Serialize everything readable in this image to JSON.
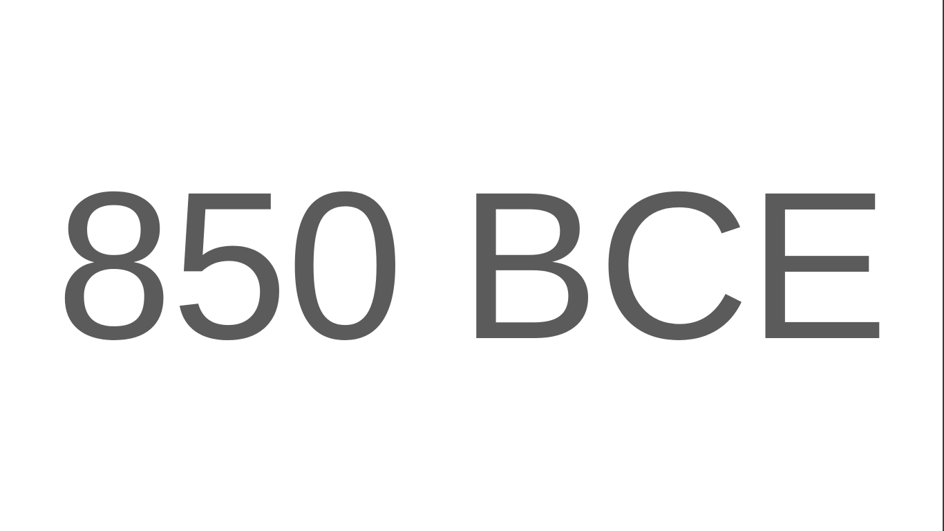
{
  "slide": {
    "text": "850 BCE",
    "text_color": "#5b5b5b",
    "background_color": "#ffffff"
  }
}
